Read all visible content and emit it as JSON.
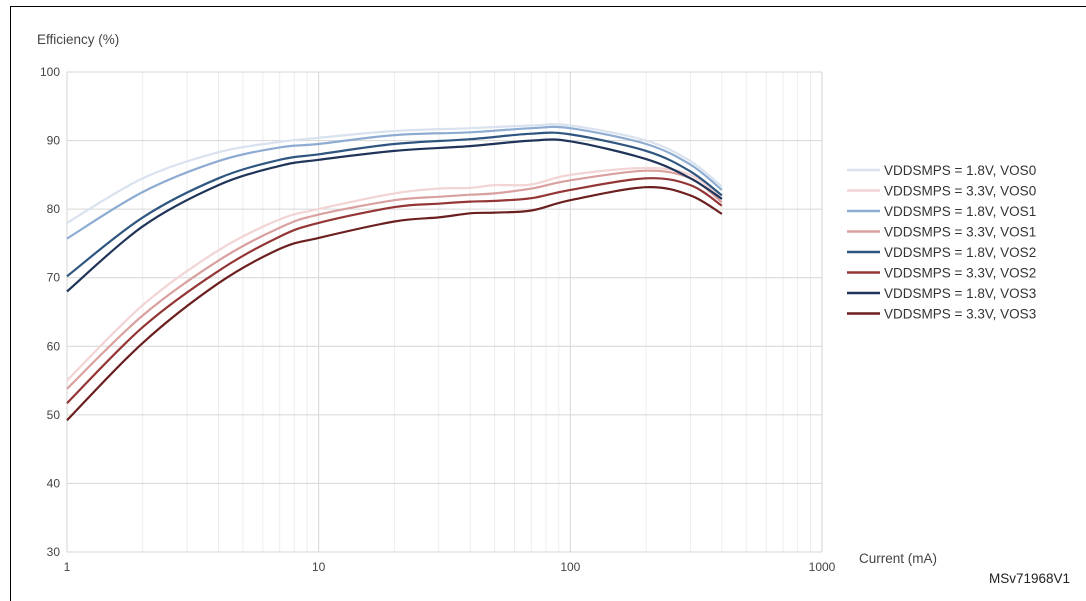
{
  "chart_data": {
    "type": "line",
    "xlabel": "Current (mA)",
    "ylabel": "Efficiency (%)",
    "xscale": "log",
    "xlim": [
      1,
      1000
    ],
    "ylim": [
      30,
      100
    ],
    "xticks": [
      "1",
      "10",
      "100",
      "1000"
    ],
    "yticks": [
      "30",
      "40",
      "50",
      "60",
      "70",
      "80",
      "90",
      "100"
    ],
    "grid": true,
    "legend": "right",
    "series": [
      {
        "name": "VDDSMPS = 1.8V, VOS0",
        "color": "#d9e2ef",
        "x": [
          1,
          2,
          4,
          7,
          10,
          20,
          40,
          70,
          100,
          200,
          300,
          400
        ],
        "y": [
          78,
          84.5,
          88.3,
          89.8,
          90.4,
          91.4,
          91.8,
          92.2,
          92.2,
          90,
          87,
          83.3
        ]
      },
      {
        "name": "VDDSMPS = 3.3V, VOS0",
        "color": "#f2d4d4",
        "x": [
          1,
          2,
          4,
          7,
          10,
          20,
          30,
          40,
          50,
          70,
          100,
          200,
          300,
          400
        ],
        "y": [
          55,
          66,
          74,
          78.5,
          80,
          82.3,
          83,
          83.1,
          83.5,
          83.6,
          85,
          86,
          85,
          81.5
        ]
      },
      {
        "name": "VDDSMPS = 1.8V, VOS1",
        "color": "#8eacd2",
        "x": [
          1,
          2,
          4,
          7,
          10,
          20,
          40,
          70,
          100,
          200,
          300,
          400
        ],
        "y": [
          75.7,
          82.5,
          87,
          89,
          89.5,
          90.8,
          91.2,
          91.8,
          91.8,
          89.5,
          86.5,
          82.8
        ]
      },
      {
        "name": "VDDSMPS = 3.3V, VOS1",
        "color": "#d9a0a0",
        "x": [
          1,
          2,
          4,
          7,
          10,
          20,
          30,
          40,
          50,
          70,
          100,
          200,
          300,
          400
        ],
        "y": [
          53.8,
          64.5,
          72.5,
          77.3,
          79.2,
          81.3,
          81.8,
          82.1,
          82.3,
          83,
          84.2,
          85.6,
          84.5,
          81
        ]
      },
      {
        "name": "VDDSMPS = 1.8V, VOS2",
        "color": "#2f5680",
        "x": [
          1,
          2,
          4,
          7,
          10,
          20,
          40,
          70,
          100,
          200,
          300,
          400
        ],
        "y": [
          70.2,
          78.8,
          84.5,
          87.2,
          88,
          89.5,
          90.2,
          91,
          90.9,
          88.5,
          85.5,
          82
        ]
      },
      {
        "name": "VDDSMPS = 3.3V, VOS2",
        "color": "#943636",
        "x": [
          1,
          2,
          4,
          7,
          10,
          20,
          30,
          40,
          50,
          70,
          100,
          200,
          300,
          400
        ],
        "y": [
          51.7,
          62.8,
          71,
          76,
          78,
          80.3,
          80.8,
          81.1,
          81.2,
          81.6,
          82.8,
          84.5,
          83.5,
          80.5
        ]
      },
      {
        "name": "VDDSMPS = 1.8V, VOS3",
        "color": "#1f3458",
        "x": [
          1,
          2,
          4,
          7,
          10,
          20,
          40,
          70,
          100,
          200,
          300,
          400
        ],
        "y": [
          68,
          77.5,
          83.5,
          86.3,
          87.2,
          88.5,
          89.2,
          90,
          89.9,
          87.3,
          84.5,
          81.5
        ]
      },
      {
        "name": "VDDSMPS = 3.3V, VOS3",
        "color": "#6b1f1f",
        "x": [
          1,
          2,
          4,
          7,
          10,
          20,
          30,
          40,
          50,
          70,
          100,
          200,
          300,
          400
        ],
        "y": [
          49.2,
          60.5,
          69.2,
          74.2,
          75.8,
          78.2,
          78.8,
          79.4,
          79.5,
          79.8,
          81.3,
          83.2,
          82,
          79.3
        ]
      }
    ]
  },
  "figure_ref": "MSv71968V1"
}
